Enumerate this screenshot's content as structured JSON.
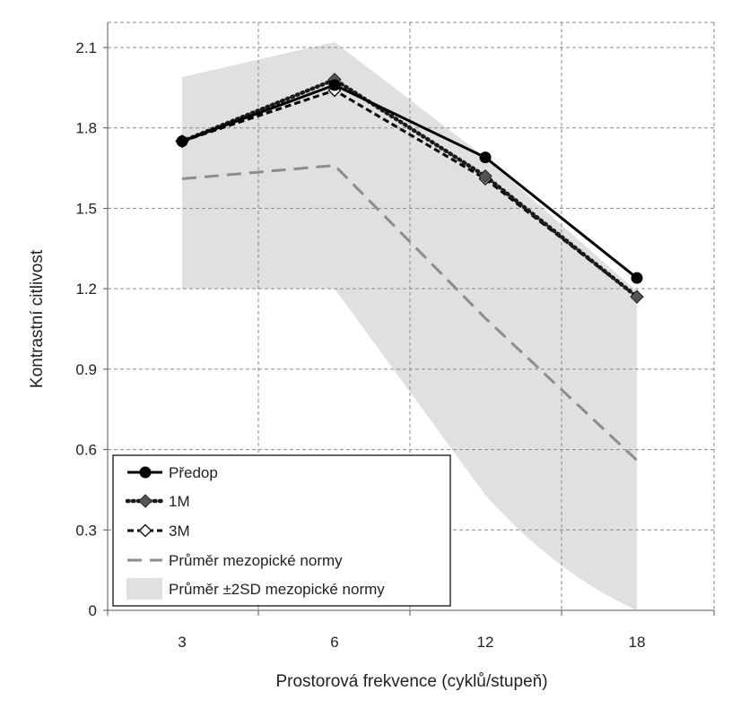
{
  "chart_data": {
    "type": "line",
    "title": "",
    "xlabel": "Prostorová frekvence  (cyklů/stupeň)",
    "ylabel": "Kontrastní citlivost",
    "categories": [
      "3",
      "6",
      "12",
      "18"
    ],
    "ylim": [
      0,
      2.1
    ],
    "yticks": [
      "0",
      "0.3",
      "0.6",
      "0.9",
      "1.2",
      "1.5",
      "1.8",
      "2.1"
    ],
    "grid": true,
    "legend_position": "bottom-left",
    "series": [
      {
        "name": "Předop",
        "values": [
          1.75,
          1.96,
          1.69,
          1.24
        ],
        "color": "#000000",
        "style": "solid",
        "marker": "filled-circle"
      },
      {
        "name": "1M",
        "values": [
          1.75,
          1.98,
          1.62,
          1.17
        ],
        "color": "#1a1a1a",
        "style": "dotted",
        "marker": "filled-diamond"
      },
      {
        "name": "3M",
        "values": [
          1.75,
          1.94,
          1.61,
          1.17
        ],
        "color": "#000000",
        "style": "dashed",
        "marker": "open-diamond"
      },
      {
        "name": "Průměr mezopické normy",
        "values": [
          1.61,
          1.66,
          1.09,
          0.56
        ],
        "color": "#8c8c8c",
        "style": "long-dash",
        "marker": "none"
      }
    ],
    "band": {
      "name": "Průměr ±2SD mezopické normy",
      "upper": [
        1.99,
        2.12,
        1.69,
        1.19
      ],
      "lower": [
        1.2,
        1.2,
        0.43,
        0.0
      ],
      "color": "#e0e0e0"
    }
  }
}
